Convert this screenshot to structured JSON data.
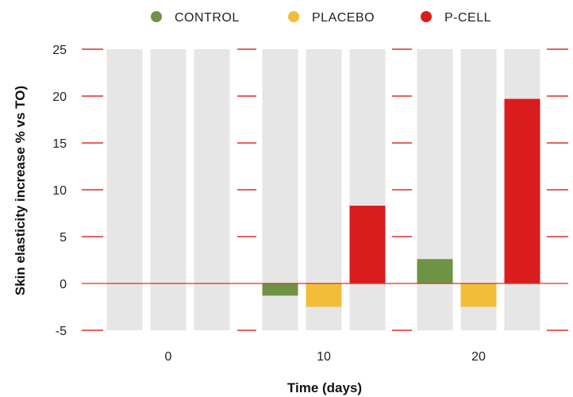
{
  "chart_data": {
    "type": "bar",
    "categories": [
      "0",
      "10",
      "20"
    ],
    "series": [
      {
        "name": "CONTROL",
        "color": "#6e9344",
        "values": [
          0,
          -1.3,
          2.6
        ]
      },
      {
        "name": "PLACEBO",
        "color": "#f2be3a",
        "values": [
          0,
          -2.5,
          -2.5
        ]
      },
      {
        "name": "P-CELL",
        "color": "#da1c1c",
        "values": [
          0,
          8.3,
          19.7
        ]
      }
    ],
    "xlabel": "Time (days)",
    "ylabel": "Skin elasticity increase % vs TO)",
    "ylim": [
      -5,
      25
    ],
    "yticks": [
      "25",
      "20",
      "15",
      "10",
      "5",
      "0",
      "-5"
    ],
    "legend_position": "top-center",
    "background_bar_color": "#e6e6e6",
    "gridline_color": "#d9312b"
  }
}
